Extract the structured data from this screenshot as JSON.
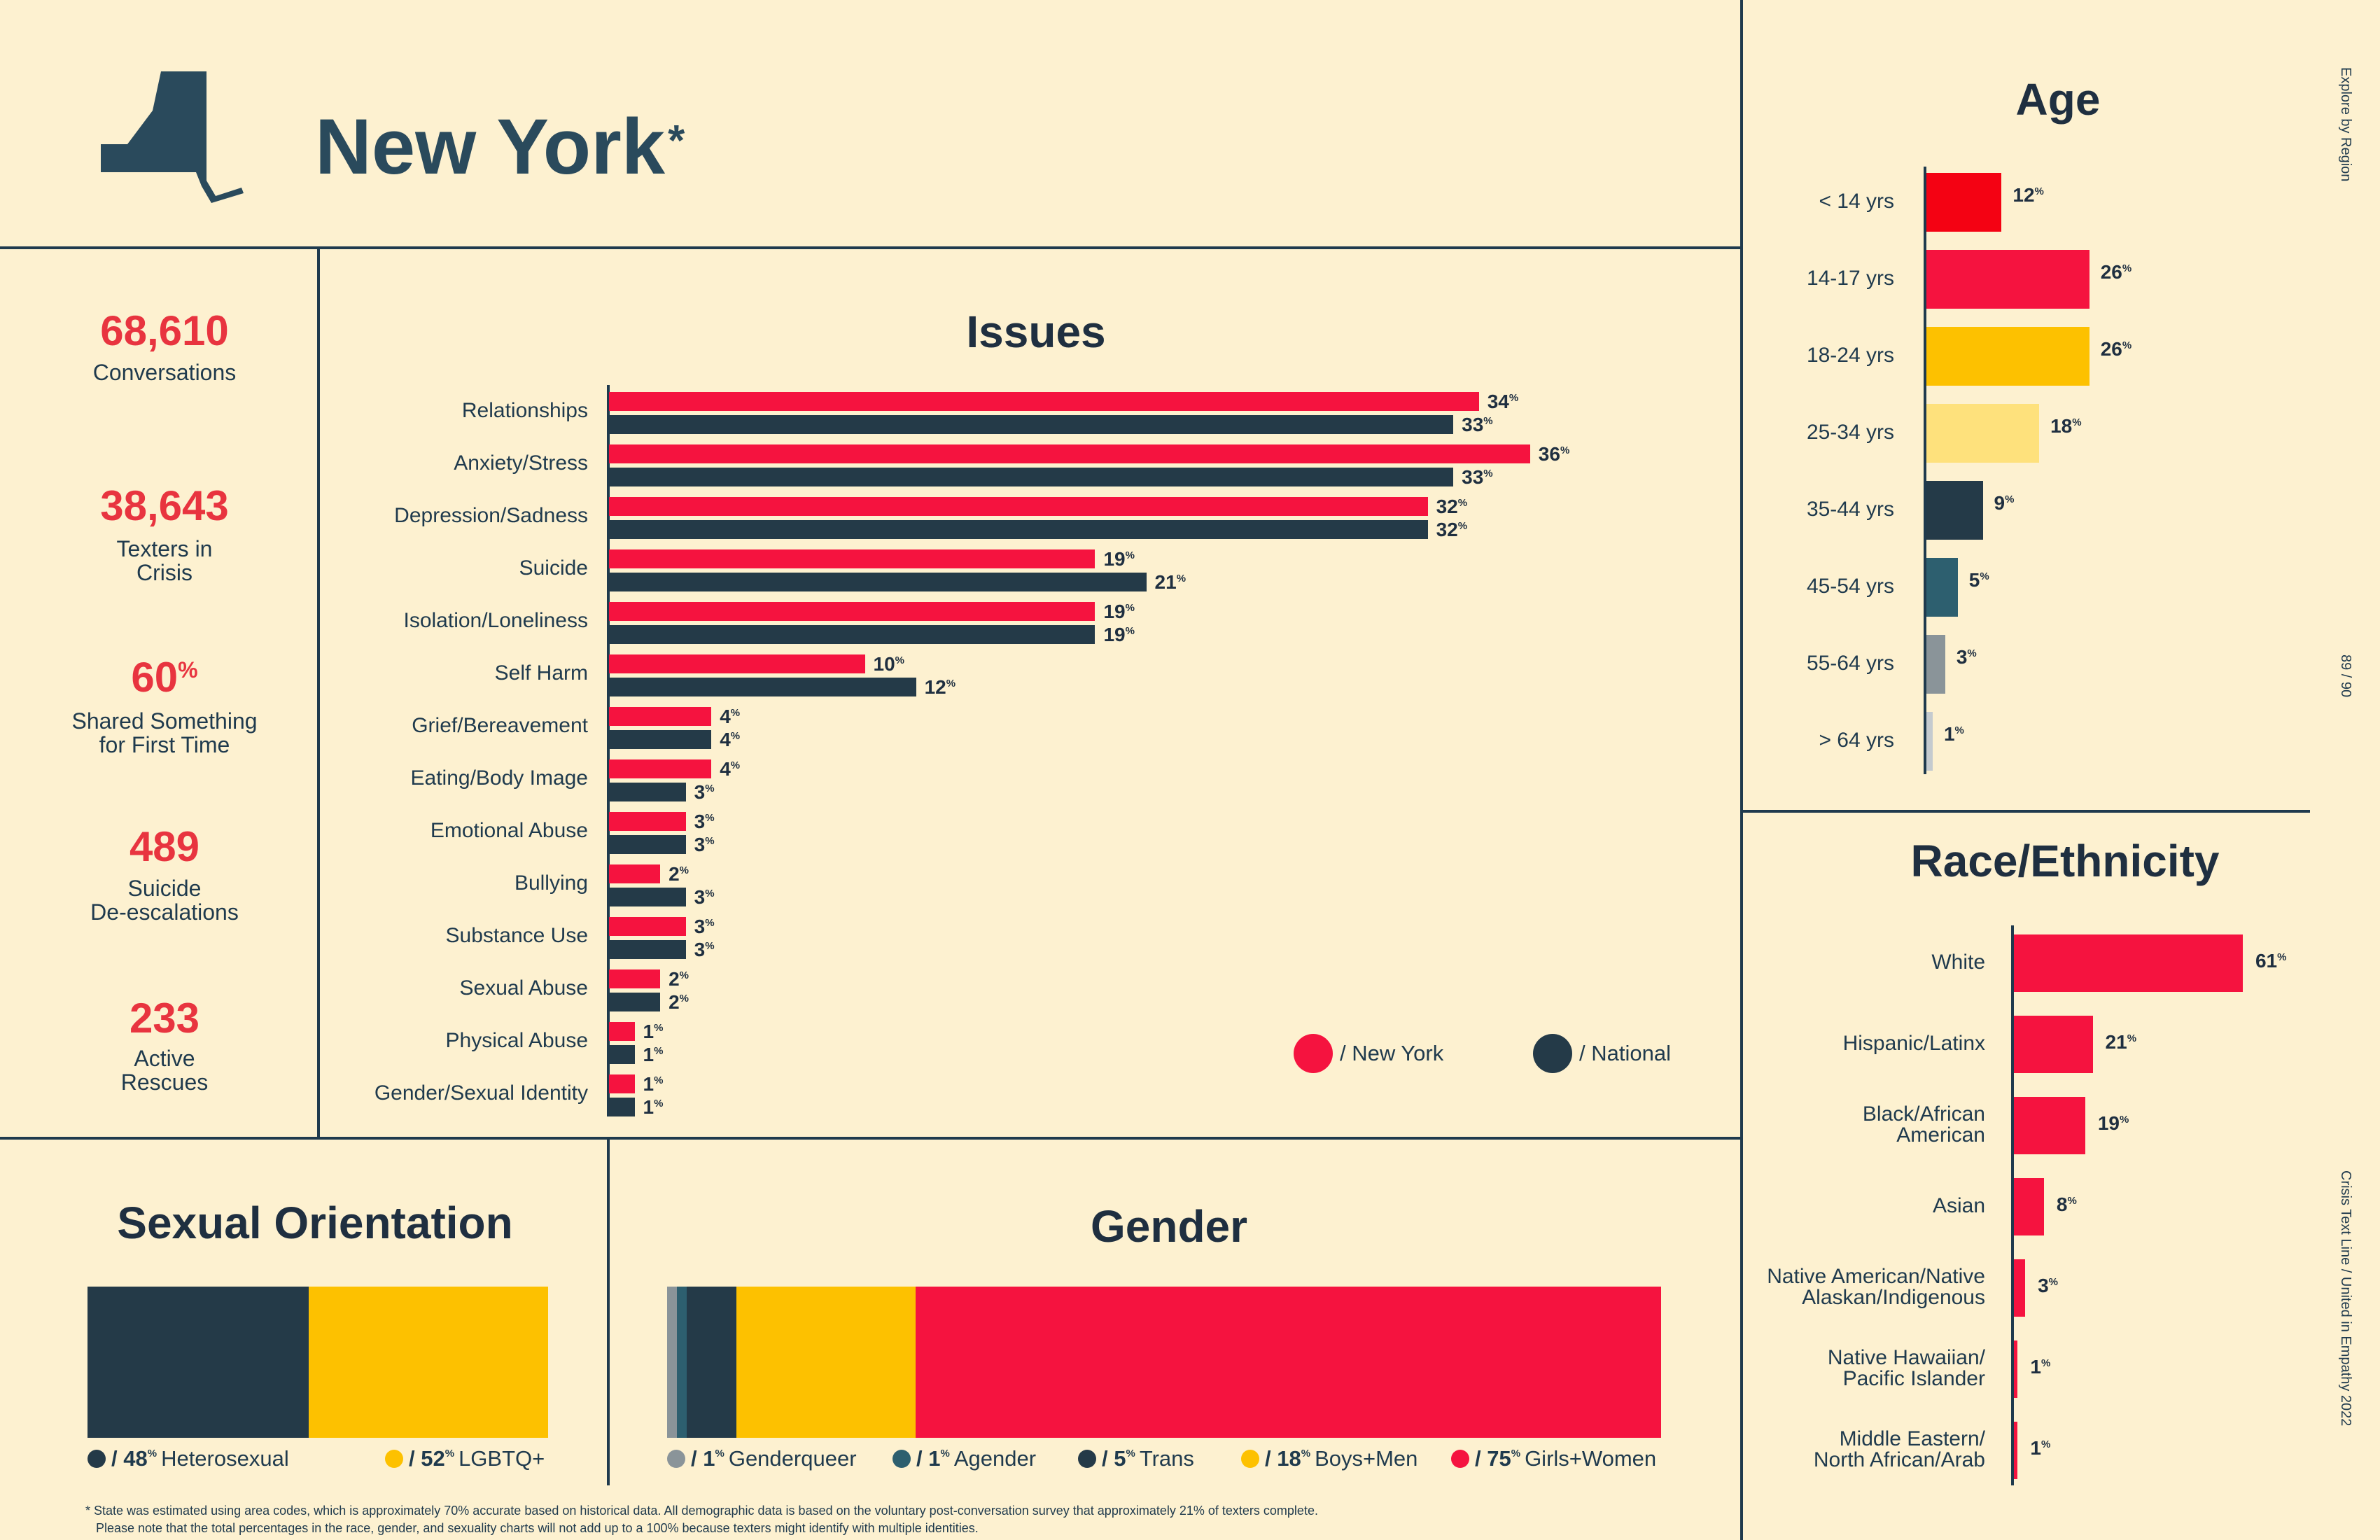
{
  "header": {
    "title": "New York",
    "asterisk": "*"
  },
  "stats": [
    {
      "value": "68,610",
      "label_lines": [
        "Conversations"
      ]
    },
    {
      "value": "38,643",
      "label_lines": [
        "Texters in",
        "Crisis"
      ]
    },
    {
      "value": "60",
      "suffix": "%",
      "label_lines": [
        "Shared Something",
        "for First Time"
      ]
    },
    {
      "value": "489",
      "label_lines": [
        "Suicide",
        "De-escalations"
      ]
    },
    {
      "value": "233",
      "label_lines": [
        "Active",
        "Rescues"
      ]
    }
  ],
  "side": {
    "explore": "Explore by Region",
    "page": "89 / 90",
    "credit": "Crisis Text Line  /  United in Empathy 2022"
  },
  "footnote": [
    "* State was estimated using area codes, which is approximately 70% accurate based on historical data. All demographic data is based on the voluntary post-conversation survey that approximately 21% of texters complete.",
    "Please note that the total percentages in the race, gender, and sexuality charts will not add up to a 100% because texters might identify with multiple identities."
  ],
  "colors": {
    "background": "#fdf1d0",
    "red": "#f5133f",
    "navy": "#243a48",
    "yellow": "#fdc100",
    "light_yellow": "#fee17c",
    "teal": "#2d5f6f",
    "gray": "#8a9499",
    "light_gray": "#c5cbcf",
    "age_red": "#f40213"
  },
  "chart_data": [
    {
      "type": "bar",
      "orientation": "horizontal",
      "title": "Issues",
      "categories": [
        "Relationships",
        "Anxiety/Stress",
        "Depression/Sadness",
        "Suicide",
        "Isolation/Loneliness",
        "Self Harm",
        "Grief/Bereavement",
        "Eating/Body Image",
        "Emotional Abuse",
        "Bullying",
        "Substance Use",
        "Sexual Abuse",
        "Physical Abuse",
        "Gender/Sexual Identity"
      ],
      "series": [
        {
          "name": "/ New York",
          "color": "#f5133f",
          "values": [
            34,
            36,
            32,
            19,
            19,
            10,
            4,
            4,
            3,
            2,
            3,
            2,
            1,
            1
          ]
        },
        {
          "name": "/ National",
          "color": "#243a48",
          "values": [
            33,
            33,
            32,
            21,
            19,
            12,
            4,
            3,
            3,
            3,
            3,
            2,
            1,
            1
          ]
        }
      ],
      "unit": "%"
    },
    {
      "type": "bar",
      "orientation": "horizontal",
      "title": "Age",
      "categories": [
        "< 14 yrs",
        "14-17 yrs",
        "18-24 yrs",
        "25-34 yrs",
        "35-44 yrs",
        "45-54 yrs",
        "55-64 yrs",
        "> 64 yrs"
      ],
      "values": [
        12,
        26,
        26,
        18,
        9,
        5,
        3,
        1
      ],
      "colors": [
        "#f40213",
        "#f5133f",
        "#fdc100",
        "#fee17c",
        "#243a48",
        "#2d5f6f",
        "#8a9499",
        "#c5cbcf"
      ],
      "unit": "%"
    },
    {
      "type": "bar",
      "orientation": "horizontal",
      "title": "Race/Ethnicity",
      "categories": [
        [
          "White"
        ],
        [
          "Hispanic/Latinx"
        ],
        [
          "Black/African",
          "American"
        ],
        [
          "Asian"
        ],
        [
          "Native American/Native",
          "Alaskan/Indigenous"
        ],
        [
          "Native Hawaiian/",
          "Pacific Islander"
        ],
        [
          "Middle Eastern/",
          "North African/Arab"
        ]
      ],
      "values": [
        61,
        21,
        19,
        8,
        3,
        1,
        1
      ],
      "color": "#f5133f",
      "unit": "%"
    },
    {
      "type": "bar",
      "orientation": "stacked-horizontal",
      "title": "Sexual Orientation",
      "segments": [
        {
          "name": "Heterosexual",
          "value": 48,
          "color": "#243a48"
        },
        {
          "name": "LGBTQ+",
          "value": 52,
          "color": "#fdc100"
        }
      ],
      "unit": "%"
    },
    {
      "type": "bar",
      "orientation": "stacked-horizontal",
      "title": "Gender",
      "segments": [
        {
          "name": "Genderqueer",
          "value": 1,
          "color": "#8a9499"
        },
        {
          "name": "Agender",
          "value": 1,
          "color": "#2d5f6f"
        },
        {
          "name": "Trans",
          "value": 5,
          "color": "#243a48"
        },
        {
          "name": "Boys+Men",
          "value": 18,
          "color": "#fdc100"
        },
        {
          "name": "Girls+Women",
          "value": 75,
          "color": "#f5133f"
        }
      ],
      "unit": "%"
    }
  ]
}
